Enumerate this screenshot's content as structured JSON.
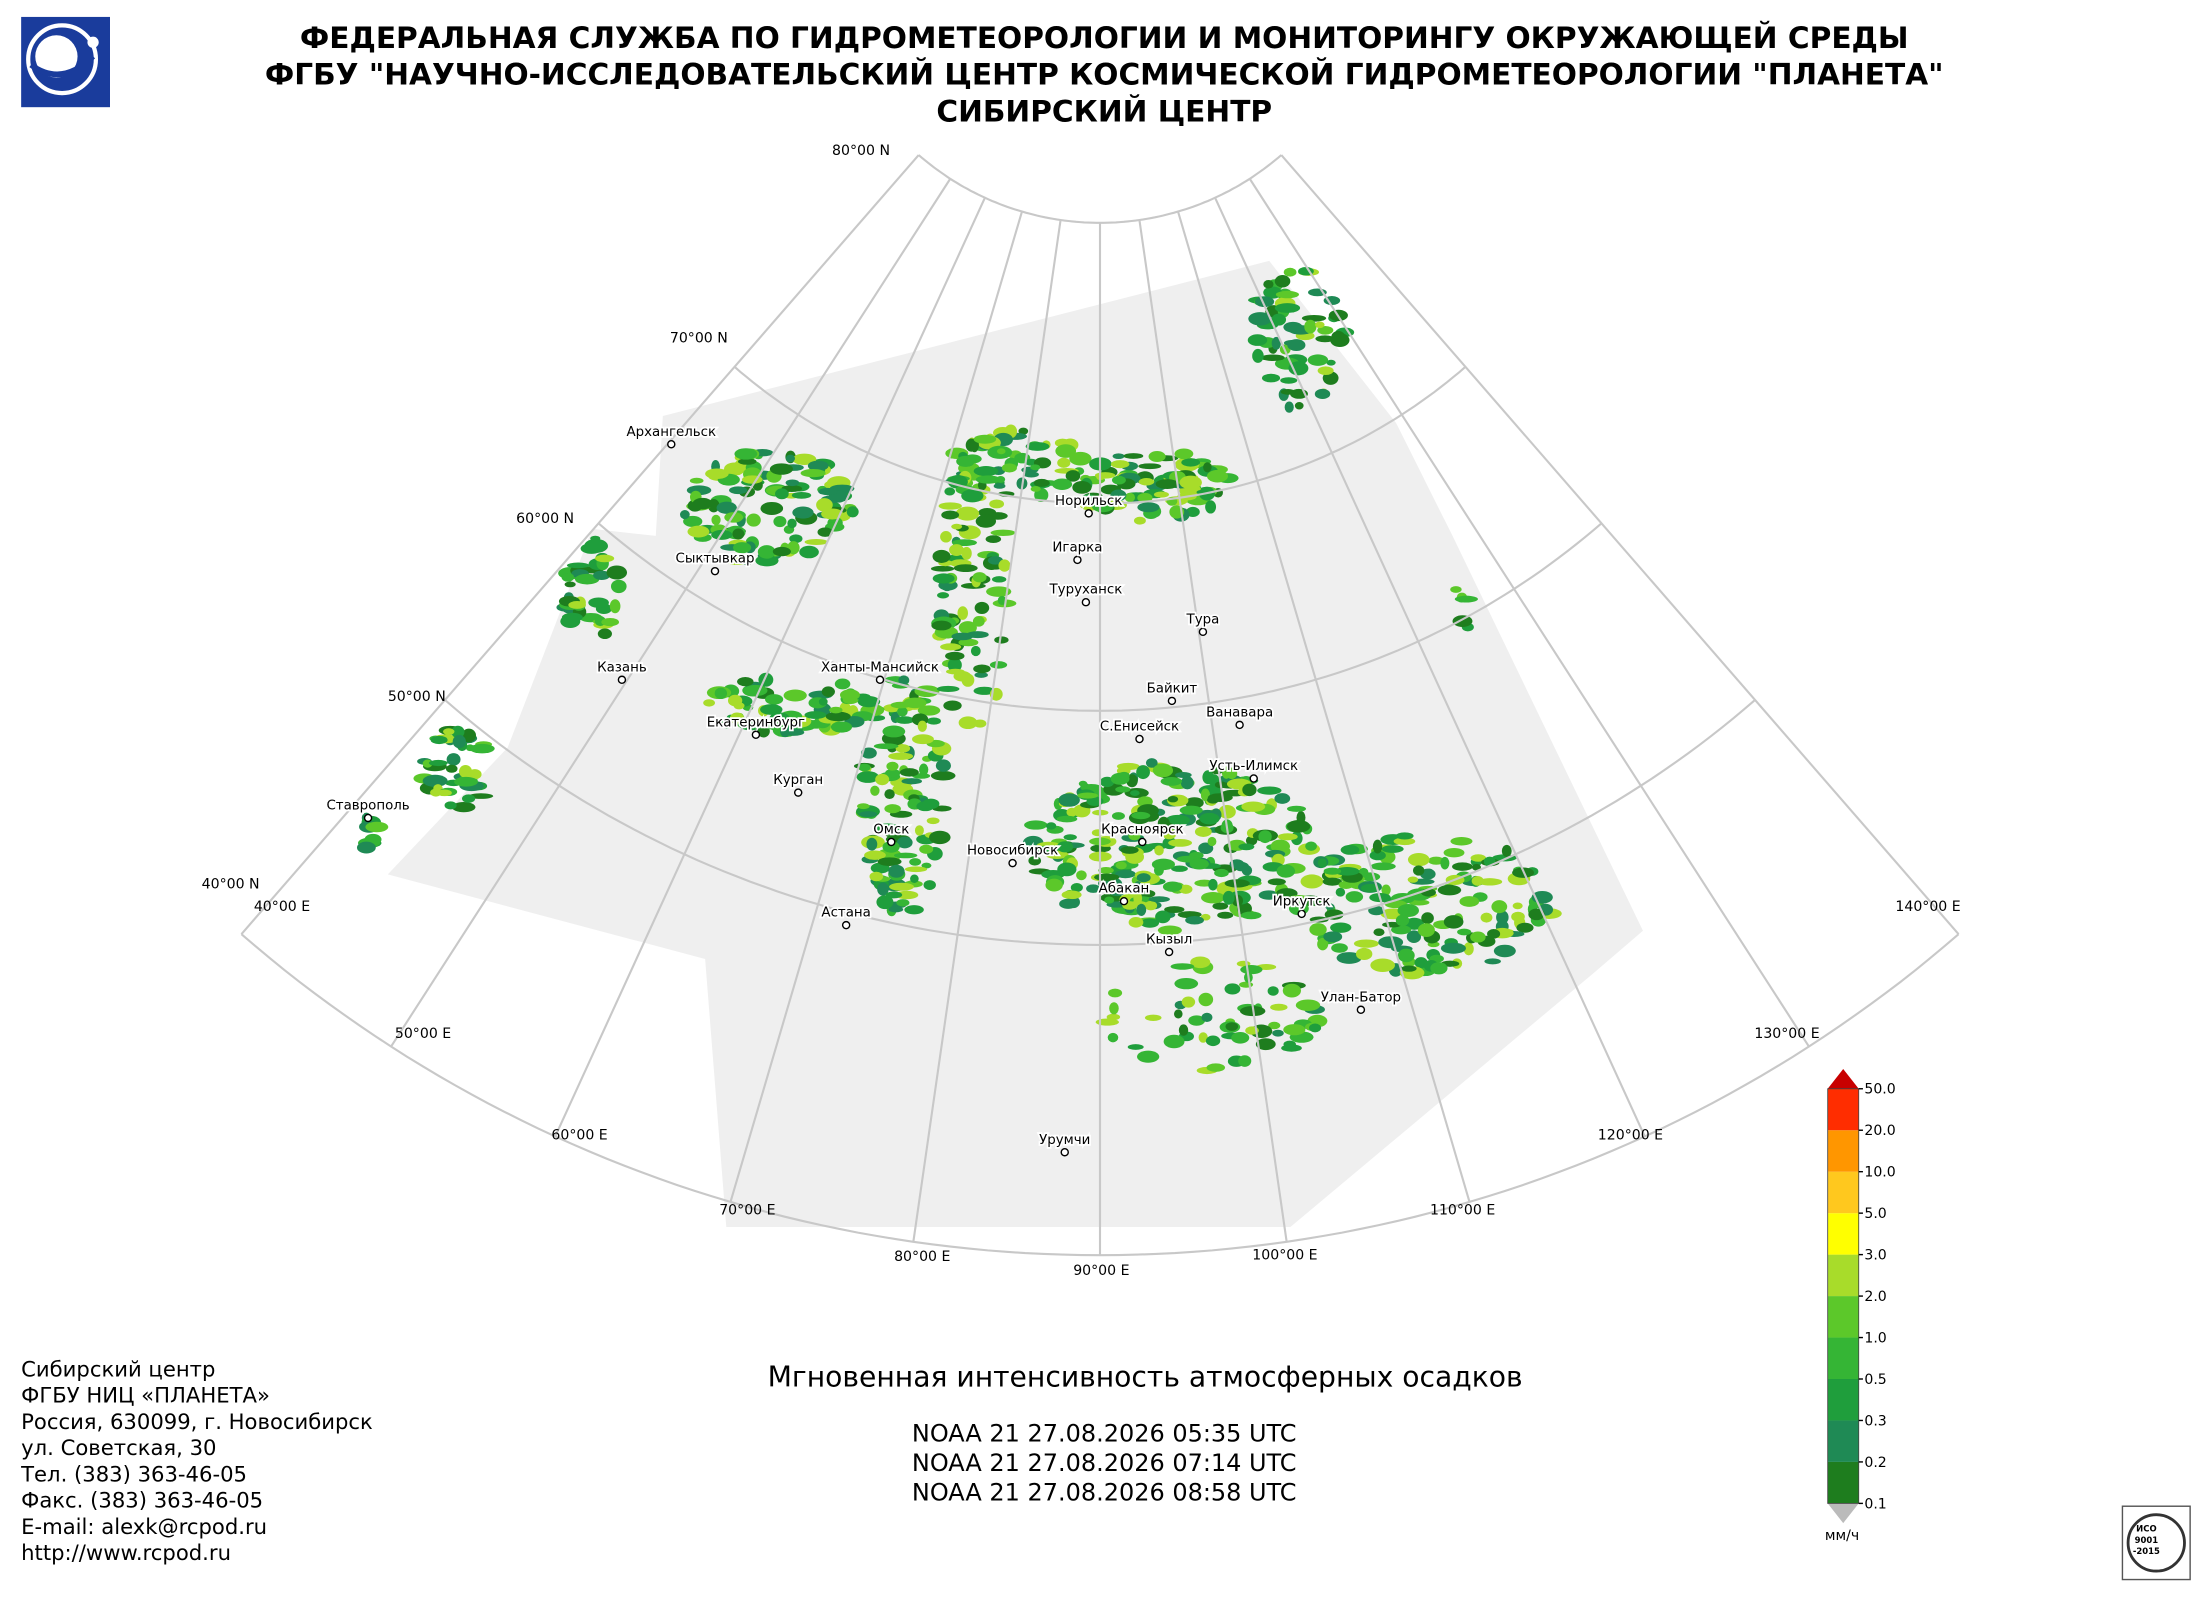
{
  "header": {
    "lines": [
      "ФЕДЕРАЛЬНАЯ СЛУЖБА ПО ГИДРОМЕТЕОРОЛОГИИ И МОНИТОРИНГУ ОКРУЖАЮЩЕЙ СРЕДЫ",
      "ФГБУ \"НАУЧНО-ИССЛЕДОВАТЕЛЬСКИЙ ЦЕНТР КОСМИЧЕСКОЙ ГИДРОМЕТЕОРОЛОГИИ \"ПЛАНЕТА\"",
      "СИБИРСКИЙ ЦЕНТР"
    ]
  },
  "map": {
    "parallel_labels": [
      "80°00 N",
      "70°00 N",
      "60°00 N",
      "50°00 N",
      "40°00 N"
    ],
    "meridian_labels": [
      "40°00 E",
      "50°00 E",
      "60°00 E",
      "70°00 E",
      "80°00 E",
      "90°00 E",
      "100°00 E",
      "110°00 E",
      "120°00 E",
      "130°00 E",
      "140°00 E"
    ],
    "cities": [
      "Архангельск",
      "Сыктывкар",
      "Казань",
      "Екатеринбург",
      "Ханты-Мансийск",
      "Курган",
      "Омск",
      "Астана",
      "Новосибирск",
      "Норильск",
      "Игарка",
      "Туруханск",
      "Тура",
      "Байкит",
      "Ванавара",
      "С.Енисейск",
      "Усть-Илимск",
      "Красноярск",
      "Абакан",
      "Кызыл",
      "Иркутск",
      "Улан-Батор",
      "Урумчи",
      "Ставрополь"
    ]
  },
  "legend": {
    "labels": [
      "0.1",
      "0.2",
      "0.3",
      "0.5",
      "1.0",
      "2.0",
      "3.0",
      "5.0",
      "10.0",
      "20.0",
      "50.0"
    ],
    "colors": [
      "#1e7d1e",
      "#1f8a55",
      "#1f9e3c",
      "#35b535",
      "#5cc82a",
      "#a8dc2a",
      "#ffff00",
      "#ffc81e",
      "#ff9600",
      "#ff2d00",
      "#c80000"
    ],
    "unit": "мм/ч"
  },
  "product": {
    "title": "Мгновенная интенсивность атмосферных осадков",
    "passes": [
      "NOAA 21 27.08.2026  05:35 UTC",
      "NOAA 21 27.08.2026  07:14 UTC",
      "NOAA 21 27.08.2026  08:58 UTC"
    ]
  },
  "contacts": {
    "lines": [
      "Сибирский центр",
      "ФГБУ НИЦ «ПЛАНЕТА»",
      "Россия, 630099, г. Новосибирск",
      "ул. Советская, 30",
      "Тел. (383) 363-46-05",
      "Факс. (383) 363-46-05",
      "E-mail: alexk@rcpod.ru",
      "http://www.rcpod.ru"
    ]
  },
  "certification": {
    "lines": [
      "ИСО",
      "9001",
      "-2015"
    ]
  }
}
